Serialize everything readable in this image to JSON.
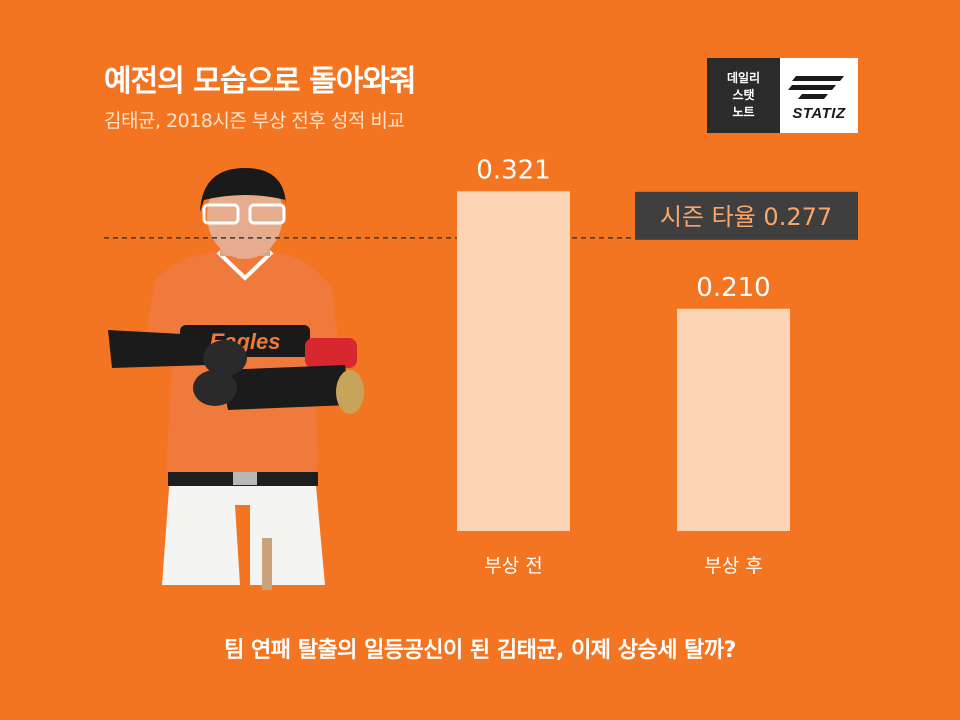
{
  "title": "예전의 모습으로 돌아와줘",
  "subtitle": "김태균, 2018시즌 부상 전후 성적 비교",
  "logo": {
    "line1": "데일리",
    "line2": "스탯",
    "line3": "노트",
    "brand": "STATIZ"
  },
  "footer": "팀 연패 탈출의 일등공신이 된 김태균, 이제 상승세 탈까?",
  "colors": {
    "background": "#F47521",
    "bar": "#FDD5B5",
    "reference_box": "#3F3F3F",
    "reference_text": "#F9A66B"
  },
  "chart_data": {
    "type": "bar",
    "categories": [
      "부상 전",
      "부상 후"
    ],
    "values": [
      0.321,
      0.21
    ],
    "value_labels": [
      "0.321",
      "0.210"
    ],
    "reference_line": {
      "value": 0.277,
      "label": "시즌 타율 0.277",
      "style": "dashed"
    },
    "ylim": [
      0,
      0.36
    ],
    "grid": false,
    "legend": "none"
  }
}
